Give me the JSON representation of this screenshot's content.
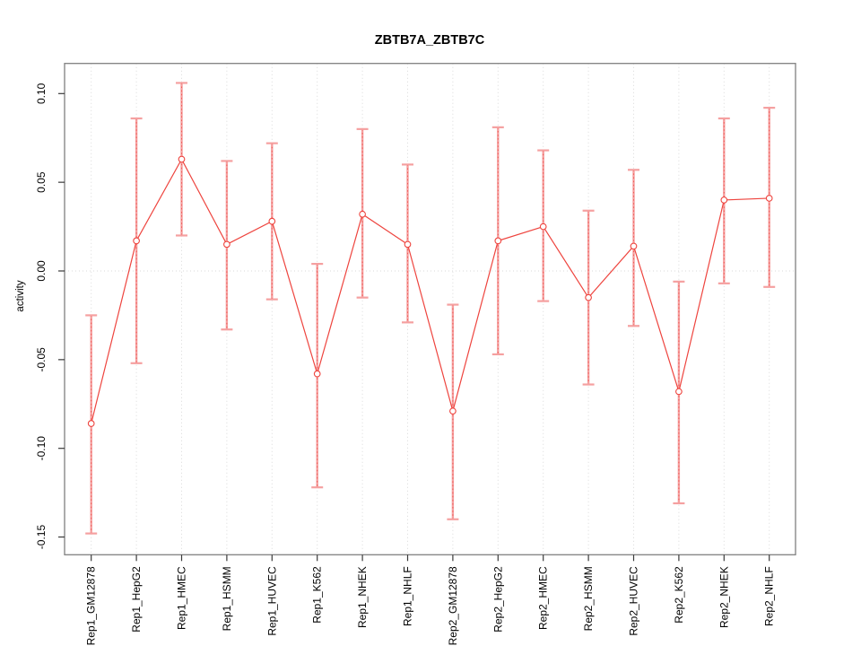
{
  "window": {
    "background": "#ffffff"
  },
  "chart_data": {
    "type": "line",
    "title": "ZBTB7A_ZBTB7C",
    "xlabel": "",
    "ylabel": "activity",
    "ylim": [
      -0.16,
      0.117
    ],
    "yticks": [
      0.1,
      0.05,
      0.0,
      -0.05,
      -0.1,
      -0.15
    ],
    "ytick_labels": [
      "0.10",
      "0.05",
      "0.00",
      "-0.05",
      "-0.10",
      "-0.15"
    ],
    "grid": "vertical dotted gridline at every category; horizontal dotted line at y=0; no legend",
    "legend_position": "none",
    "marker": "open-circle",
    "categories": [
      "Rep1_GM12878",
      "Rep1_HepG2",
      "Rep1_HMEC",
      "Rep1_HSMM",
      "Rep1_HUVEC",
      "Rep1_K562",
      "Rep1_NHEK",
      "Rep1_NHLF",
      "Rep2_GM12878",
      "Rep2_HepG2",
      "Rep2_HMEC",
      "Rep2_HSMM",
      "Rep2_HUVEC",
      "Rep2_K562",
      "Rep2_NHEK",
      "Rep2_NHLF"
    ],
    "series": [
      {
        "name": "activity",
        "values": [
          -0.086,
          0.017,
          0.063,
          0.015,
          0.028,
          -0.058,
          0.032,
          0.015,
          -0.079,
          0.017,
          0.025,
          -0.015,
          0.014,
          -0.068,
          0.04,
          0.041
        ],
        "error_low": [
          -0.148,
          -0.052,
          0.02,
          -0.033,
          -0.016,
          -0.122,
          -0.015,
          -0.029,
          -0.14,
          -0.047,
          -0.017,
          -0.064,
          -0.031,
          -0.131,
          -0.007,
          -0.009
        ],
        "error_high": [
          -0.025,
          0.086,
          0.106,
          0.062,
          0.072,
          0.004,
          0.08,
          0.06,
          -0.019,
          0.081,
          0.068,
          0.034,
          0.057,
          -0.006,
          0.086,
          0.092
        ]
      }
    ],
    "colors": {
      "series_line": "#ee443e",
      "error_bar": "#f5a0a0",
      "gridline": "#d9d9d9",
      "plot_border": "#808080",
      "tick": "#3a3a3a",
      "text": "#000000"
    }
  }
}
